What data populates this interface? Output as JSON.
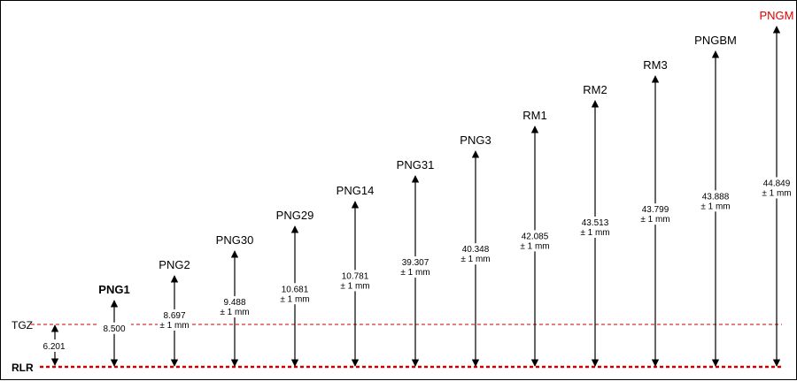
{
  "reference_lines": {
    "rlr_label": "RLR",
    "tgz_label": "TGZ",
    "line_color": "#cc0000"
  },
  "tgz_marker": {
    "value": "6.201"
  },
  "markers": [
    {
      "label": "PNG1",
      "value": "8.500",
      "tolerance": "",
      "bold": true
    },
    {
      "label": "PNG2",
      "value": "8.697",
      "tolerance": "± 1 mm"
    },
    {
      "label": "PNG30",
      "value": "9.488",
      "tolerance": "± 1 mm"
    },
    {
      "label": "PNG29",
      "value": "10.681",
      "tolerance": "± 1 mm"
    },
    {
      "label": "PNG14",
      "value": "10.781",
      "tolerance": "± 1 mm"
    },
    {
      "label": "PNG31",
      "value": "39.307",
      "tolerance": "± 1 mm"
    },
    {
      "label": "PNG3",
      "value": "40.348",
      "tolerance": "± 1 mm"
    },
    {
      "label": "RM1",
      "value": "42.085",
      "tolerance": "± 1 mm"
    },
    {
      "label": "RM2",
      "value": "43.513",
      "tolerance": "± 1 mm"
    },
    {
      "label": "RM3",
      "value": "43.799",
      "tolerance": "± 1 mm"
    },
    {
      "label": "PNGBM",
      "value": "43.888",
      "tolerance": "± 1 mm"
    },
    {
      "label": "PNGM",
      "value": "44.849",
      "tolerance": "± 1 mm",
      "color": "#dd0000"
    }
  ]
}
